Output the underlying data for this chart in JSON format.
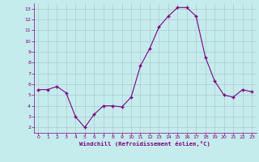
{
  "x": [
    0,
    1,
    2,
    3,
    4,
    5,
    6,
    7,
    8,
    9,
    10,
    11,
    12,
    13,
    14,
    15,
    16,
    17,
    18,
    19,
    20,
    21,
    22,
    23
  ],
  "y": [
    5.5,
    5.5,
    5.8,
    5.2,
    3.0,
    2.0,
    3.2,
    4.0,
    4.0,
    3.9,
    4.8,
    7.7,
    9.3,
    11.3,
    12.3,
    13.1,
    13.1,
    12.3,
    8.5,
    6.3,
    5.0,
    4.8,
    5.5,
    5.3
  ],
  "line_color": "#800080",
  "marker": "+",
  "marker_size": 3,
  "bg_color": "#c5eced",
  "grid_color": "#aacccc",
  "xlabel": "Windchill (Refroidissement éolien,°C)",
  "xlabel_color": "#800080",
  "tick_color": "#800080",
  "xlim": [
    -0.5,
    23.5
  ],
  "ylim": [
    1.5,
    13.5
  ],
  "yticks": [
    2,
    3,
    4,
    5,
    6,
    7,
    8,
    9,
    10,
    11,
    12,
    13
  ],
  "xticks": [
    0,
    1,
    2,
    3,
    4,
    5,
    6,
    7,
    8,
    9,
    10,
    11,
    12,
    13,
    14,
    15,
    16,
    17,
    18,
    19,
    20,
    21,
    22,
    23
  ]
}
